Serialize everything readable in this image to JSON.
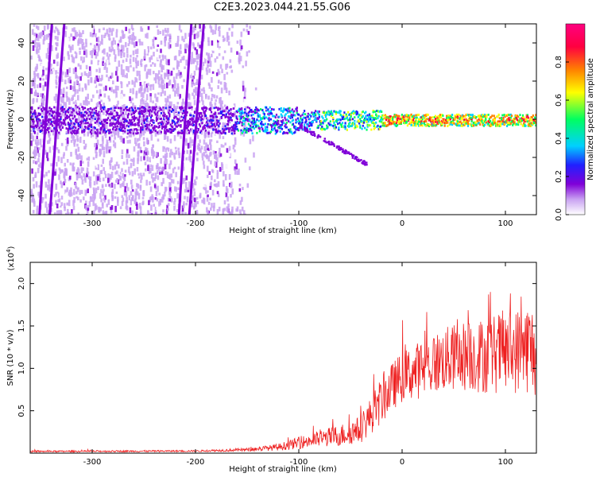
{
  "title": "C2E3.2023.044.21.55.G06",
  "chart_data": [
    {
      "type": "heatmap",
      "xlabel": "Height of straight line (km)",
      "ylabel": "Frequency (Hz)",
      "xlim": [
        -360,
        130
      ],
      "ylim": [
        -50,
        50
      ],
      "xticks": [
        -300,
        -200,
        -100,
        0,
        100
      ],
      "yticks": [
        -40,
        -20,
        0,
        20,
        40
      ],
      "colorbar": {
        "label": "Normalized spectral amplitude",
        "range": [
          0.0,
          1.0
        ],
        "ticks": [
          "0.0",
          "0.2",
          "0.4",
          "0.6",
          "0.8"
        ],
        "colors": [
          "#ffffff",
          "#c9a2f2",
          "#8000d8",
          "#2020ff",
          "#00d0ff",
          "#00ff60",
          "#ffff00",
          "#ff8000",
          "#ff0040",
          "#ff0080"
        ]
      },
      "features": {
        "center_band_freq_hz": 0,
        "noisy_region_end_km": -150,
        "diagonal_streaks_km": [
          -345,
          -335,
          -210,
          -200
        ],
        "branch_end": {
          "x": -35,
          "y": -23
        }
      }
    },
    {
      "type": "line",
      "xlabel": "Height of straight line (km)",
      "ylabel": "SNR (10 * v/v)",
      "y_multiplier": "(x10",
      "y_multiplier_exp": "4",
      "y_multiplier_close": ")",
      "xlim": [
        -360,
        130
      ],
      "ylim": [
        0,
        2.25
      ],
      "xticks": [
        -300,
        -200,
        -100,
        0,
        100
      ],
      "yticks": [
        "0.5",
        "1.0",
        "1.5",
        "2.0"
      ],
      "color": "#ee2020",
      "envelope": {
        "x": [
          -360,
          -200,
          -150,
          -120,
          -100,
          -80,
          -60,
          -40,
          -30,
          -20,
          -10,
          0,
          20,
          40,
          60,
          80,
          100,
          110,
          120,
          130
        ],
        "mean": [
          0.02,
          0.025,
          0.04,
          0.07,
          0.12,
          0.17,
          0.21,
          0.28,
          0.45,
          0.62,
          0.78,
          0.9,
          1.0,
          1.1,
          1.15,
          1.15,
          1.2,
          1.2,
          1.25,
          1.2
        ],
        "spread": [
          0.01,
          0.01,
          0.02,
          0.04,
          0.07,
          0.1,
          0.13,
          0.16,
          0.22,
          0.28,
          0.28,
          0.3,
          0.35,
          0.38,
          0.42,
          0.45,
          0.5,
          0.5,
          0.55,
          0.55
        ]
      }
    }
  ]
}
